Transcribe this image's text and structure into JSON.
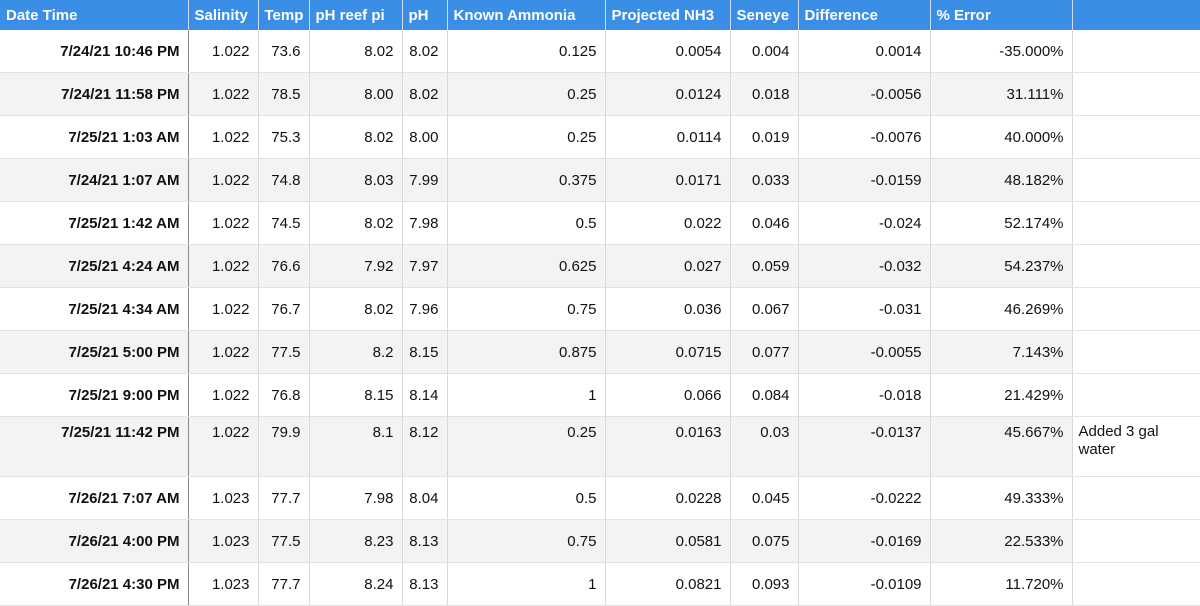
{
  "table": {
    "columns": [
      "Date Time",
      "Salinity",
      "Temp",
      "pH reef pi",
      "pH",
      "Known Ammonia",
      "Projected NH3",
      "Seneye",
      "Difference",
      "% Error",
      ""
    ],
    "rows": [
      [
        "7/24/21 10:46 PM",
        "1.022",
        "73.6",
        "8.02",
        "8.02",
        "0.125",
        "0.0054",
        "0.004",
        "0.0014",
        "-35.000%",
        ""
      ],
      [
        "7/24/21 11:58 PM",
        "1.022",
        "78.5",
        "8.00",
        "8.02",
        "0.25",
        "0.0124",
        "0.018",
        "-0.0056",
        "31.111%",
        ""
      ],
      [
        "7/25/21 1:03 AM",
        "1.022",
        "75.3",
        "8.02",
        "8.00",
        "0.25",
        "0.0114",
        "0.019",
        "-0.0076",
        "40.000%",
        ""
      ],
      [
        "7/24/21 1:07 AM",
        "1.022",
        "74.8",
        "8.03",
        "7.99",
        "0.375",
        "0.0171",
        "0.033",
        "-0.0159",
        "48.182%",
        ""
      ],
      [
        "7/25/21 1:42 AM",
        "1.022",
        "74.5",
        "8.02",
        "7.98",
        "0.5",
        "0.022",
        "0.046",
        "-0.024",
        "52.174%",
        ""
      ],
      [
        "7/25/21 4:24 AM",
        "1.022",
        "76.6",
        "7.92",
        "7.97",
        "0.625",
        "0.027",
        "0.059",
        "-0.032",
        "54.237%",
        ""
      ],
      [
        "7/25/21 4:34 AM",
        "1.022",
        "76.7",
        "8.02",
        "7.96",
        "0.75",
        "0.036",
        "0.067",
        "-0.031",
        "46.269%",
        ""
      ],
      [
        "7/25/21 5:00 PM",
        "1.022",
        "77.5",
        "8.2",
        "8.15",
        "0.875",
        "0.0715",
        "0.077",
        "-0.0055",
        "7.143%",
        ""
      ],
      [
        "7/25/21 9:00 PM",
        "1.022",
        "76.8",
        "8.15",
        "8.14",
        "1",
        "0.066",
        "0.084",
        "-0.018",
        "21.429%",
        ""
      ],
      [
        "7/25/21 11:42 PM",
        "1.022",
        "79.9",
        "8.1",
        "8.12",
        "0.25",
        "0.0163",
        "0.03",
        "-0.0137",
        "45.667%",
        "Added 3 gal water"
      ],
      [
        "7/26/21 7:07 AM",
        "1.023",
        "77.7",
        "7.98",
        "8.04",
        "0.5",
        "0.0228",
        "0.045",
        "-0.0222",
        "49.333%",
        ""
      ],
      [
        "7/26/21 4:00 PM",
        "1.023",
        "77.5",
        "8.23",
        "8.13",
        "0.75",
        "0.0581",
        "0.075",
        "-0.0169",
        "22.533%",
        ""
      ],
      [
        "7/26/21 4:30 PM",
        "1.023",
        "77.7",
        "8.24",
        "8.13",
        "1",
        "0.0821",
        "0.093",
        "-0.0109",
        "11.720%",
        ""
      ]
    ]
  }
}
